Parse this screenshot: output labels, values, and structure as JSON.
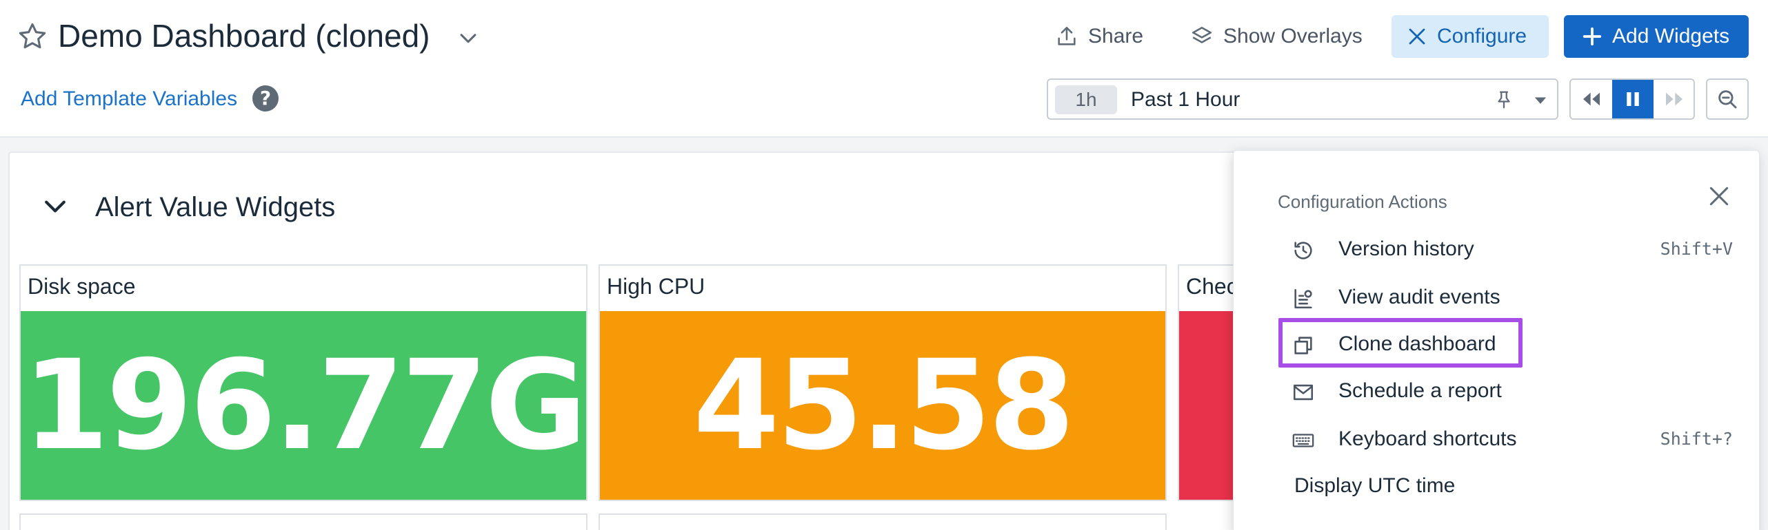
{
  "header": {
    "title": "Demo Dashboard (cloned)",
    "add_template_variables": "Add Template Variables",
    "help_glyph": "?",
    "share_label": "Share",
    "overlays_label": "Show Overlays",
    "configure_label": "Configure",
    "add_widgets_label": "Add Widgets"
  },
  "time_picker": {
    "chip": "1h",
    "label": "Past 1 Hour"
  },
  "colors": {
    "accent": "#1467c4",
    "configure_bg": "#d7ebfa",
    "highlight": "#a94de8",
    "ok_green": "#45c566",
    "warn_orange": "#f79a08",
    "alert_red": "#e8324b"
  },
  "group": {
    "title": "Alert Value Widgets"
  },
  "widgets": [
    {
      "title": "Disk space",
      "value": "196.77G",
      "status_color": "#45c566"
    },
    {
      "title": "High CPU",
      "value": "45.58",
      "status_color": "#f79a08"
    },
    {
      "title": "Chec",
      "value": "",
      "status_color": "#e8324b"
    }
  ],
  "config_panel": {
    "heading": "Configuration Actions",
    "items": [
      {
        "label": "Version history",
        "shortcut": "Shift+V",
        "icon": "history-icon"
      },
      {
        "label": "View audit events",
        "shortcut": "",
        "icon": "audit-icon"
      },
      {
        "label": "Clone dashboard",
        "shortcut": "",
        "icon": "clone-icon"
      },
      {
        "label": "Schedule a report",
        "shortcut": "",
        "icon": "envelope-icon"
      },
      {
        "label": "Keyboard shortcuts",
        "shortcut": "Shift+?",
        "icon": "keyboard-icon"
      },
      {
        "label": "Display UTC time",
        "shortcut": ""
      }
    ]
  }
}
